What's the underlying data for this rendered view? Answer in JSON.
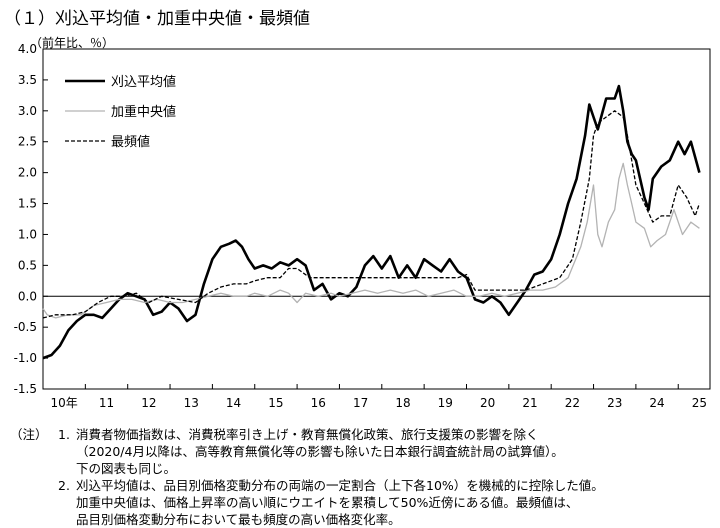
{
  "title": "（１）刈込平均値・加重中央値・最頻値",
  "unit_label": "（前年比、％）",
  "chart_data": {
    "type": "line",
    "title": "（１）刈込平均値・加重中央値・最頻値",
    "ylabel": "（前年比、％）",
    "xlabel": "",
    "ylim": [
      -1.5,
      4.0
    ],
    "yticks": [
      -1.5,
      -1.0,
      -0.5,
      0.0,
      0.5,
      1.0,
      1.5,
      2.0,
      2.5,
      3.0,
      3.5,
      4.0
    ],
    "ytick_labels": [
      "-1.5",
      "-1.0",
      "-0.5",
      "0.0",
      "0.5",
      "1.0",
      "1.5",
      "2.0",
      "2.5",
      "3.0",
      "3.5",
      "4.0"
    ],
    "xlim": [
      2010.0,
      2025.75
    ],
    "xticks": [
      2010.5,
      2011.5,
      2012.5,
      2013.5,
      2014.5,
      2015.5,
      2016.5,
      2017.5,
      2018.5,
      2019.5,
      2020.5,
      2021.5,
      2022.5,
      2023.5,
      2024.5,
      2025.5
    ],
    "xtick_labels": [
      "10年",
      "11",
      "12",
      "13",
      "14",
      "15",
      "16",
      "17",
      "18",
      "19",
      "20",
      "21",
      "22",
      "23",
      "24",
      "25"
    ],
    "grid": false,
    "zero_line": true,
    "legend": "top-left",
    "series": [
      {
        "name": "刈込平均値",
        "style": "solid",
        "color": "#000000",
        "width": 2.6,
        "points": [
          [
            2010.0,
            -1.0
          ],
          [
            2010.2,
            -0.95
          ],
          [
            2010.4,
            -0.8
          ],
          [
            2010.6,
            -0.55
          ],
          [
            2010.8,
            -0.4
          ],
          [
            2011.0,
            -0.3
          ],
          [
            2011.2,
            -0.3
          ],
          [
            2011.4,
            -0.35
          ],
          [
            2011.6,
            -0.2
          ],
          [
            2011.8,
            -0.05
          ],
          [
            2012.0,
            0.05
          ],
          [
            2012.2,
            0.0
          ],
          [
            2012.4,
            -0.05
          ],
          [
            2012.6,
            -0.3
          ],
          [
            2012.8,
            -0.25
          ],
          [
            2013.0,
            -0.1
          ],
          [
            2013.2,
            -0.2
          ],
          [
            2013.4,
            -0.4
          ],
          [
            2013.6,
            -0.3
          ],
          [
            2013.8,
            0.2
          ],
          [
            2014.0,
            0.6
          ],
          [
            2014.2,
            0.8
          ],
          [
            2014.4,
            0.85
          ],
          [
            2014.55,
            0.9
          ],
          [
            2014.7,
            0.8
          ],
          [
            2014.85,
            0.6
          ],
          [
            2015.0,
            0.45
          ],
          [
            2015.2,
            0.5
          ],
          [
            2015.4,
            0.45
          ],
          [
            2015.6,
            0.55
          ],
          [
            2015.8,
            0.5
          ],
          [
            2016.0,
            0.6
          ],
          [
            2016.2,
            0.5
          ],
          [
            2016.4,
            0.1
          ],
          [
            2016.6,
            0.2
          ],
          [
            2016.8,
            -0.05
          ],
          [
            2017.0,
            0.05
          ],
          [
            2017.2,
            0.0
          ],
          [
            2017.4,
            0.15
          ],
          [
            2017.6,
            0.5
          ],
          [
            2017.8,
            0.65
          ],
          [
            2018.0,
            0.45
          ],
          [
            2018.2,
            0.65
          ],
          [
            2018.4,
            0.3
          ],
          [
            2018.6,
            0.5
          ],
          [
            2018.8,
            0.3
          ],
          [
            2019.0,
            0.6
          ],
          [
            2019.2,
            0.5
          ],
          [
            2019.4,
            0.4
          ],
          [
            2019.6,
            0.6
          ],
          [
            2019.8,
            0.4
          ],
          [
            2020.0,
            0.3
          ],
          [
            2020.2,
            -0.05
          ],
          [
            2020.4,
            -0.1
          ],
          [
            2020.6,
            0.0
          ],
          [
            2020.8,
            -0.1
          ],
          [
            2021.0,
            -0.3
          ],
          [
            2021.2,
            -0.1
          ],
          [
            2021.4,
            0.1
          ],
          [
            2021.6,
            0.35
          ],
          [
            2021.8,
            0.4
          ],
          [
            2022.0,
            0.6
          ],
          [
            2022.2,
            1.0
          ],
          [
            2022.4,
            1.5
          ],
          [
            2022.6,
            1.9
          ],
          [
            2022.8,
            2.6
          ],
          [
            2022.9,
            3.1
          ],
          [
            2023.0,
            2.9
          ],
          [
            2023.1,
            2.7
          ],
          [
            2023.3,
            3.2
          ],
          [
            2023.5,
            3.2
          ],
          [
            2023.6,
            3.4
          ],
          [
            2023.7,
            3.0
          ],
          [
            2023.8,
            2.5
          ],
          [
            2023.9,
            2.3
          ],
          [
            2024.0,
            2.2
          ],
          [
            2024.2,
            1.6
          ],
          [
            2024.3,
            1.4
          ],
          [
            2024.4,
            1.9
          ],
          [
            2024.6,
            2.1
          ],
          [
            2024.8,
            2.2
          ],
          [
            2025.0,
            2.5
          ],
          [
            2025.15,
            2.3
          ],
          [
            2025.3,
            2.5
          ],
          [
            2025.5,
            2.0
          ]
        ]
      },
      {
        "name": "加重中央値",
        "style": "solid",
        "color": "#b3b3b3",
        "width": 1.3,
        "points": [
          [
            2010.0,
            -0.2
          ],
          [
            2010.1,
            -0.3
          ],
          [
            2010.3,
            -0.35
          ],
          [
            2010.6,
            -0.3
          ],
          [
            2010.9,
            -0.3
          ],
          [
            2011.2,
            -0.15
          ],
          [
            2011.5,
            -0.1
          ],
          [
            2011.8,
            -0.05
          ],
          [
            2012.1,
            -0.05
          ],
          [
            2012.4,
            -0.1
          ],
          [
            2012.7,
            -0.05
          ],
          [
            2013.0,
            -0.1
          ],
          [
            2013.3,
            -0.1
          ],
          [
            2013.6,
            -0.05
          ],
          [
            2013.9,
            0.0
          ],
          [
            2014.2,
            0.05
          ],
          [
            2014.5,
            0.0
          ],
          [
            2014.8,
            0.0
          ],
          [
            2015.0,
            0.05
          ],
          [
            2015.3,
            0.0
          ],
          [
            2015.6,
            0.1
          ],
          [
            2015.8,
            0.05
          ],
          [
            2016.0,
            -0.1
          ],
          [
            2016.2,
            0.05
          ],
          [
            2016.5,
            0.0
          ],
          [
            2016.8,
            0.05
          ],
          [
            2017.0,
            0.0
          ],
          [
            2017.3,
            0.05
          ],
          [
            2017.6,
            0.1
          ],
          [
            2017.9,
            0.05
          ],
          [
            2018.2,
            0.1
          ],
          [
            2018.5,
            0.05
          ],
          [
            2018.8,
            0.1
          ],
          [
            2019.1,
            0.0
          ],
          [
            2019.4,
            0.05
          ],
          [
            2019.7,
            0.1
          ],
          [
            2020.0,
            0.0
          ],
          [
            2020.3,
            0.0
          ],
          [
            2020.6,
            0.05
          ],
          [
            2020.9,
            0.0
          ],
          [
            2021.2,
            0.05
          ],
          [
            2021.5,
            0.1
          ],
          [
            2021.8,
            0.1
          ],
          [
            2022.1,
            0.15
          ],
          [
            2022.4,
            0.3
          ],
          [
            2022.7,
            0.8
          ],
          [
            2022.85,
            1.2
          ],
          [
            2023.0,
            1.8
          ],
          [
            2023.1,
            1.0
          ],
          [
            2023.2,
            0.8
          ],
          [
            2023.35,
            1.2
          ],
          [
            2023.5,
            1.4
          ],
          [
            2023.6,
            1.9
          ],
          [
            2023.7,
            2.15
          ],
          [
            2023.8,
            1.8
          ],
          [
            2023.9,
            1.5
          ],
          [
            2024.0,
            1.2
          ],
          [
            2024.2,
            1.1
          ],
          [
            2024.35,
            0.8
          ],
          [
            2024.5,
            0.9
          ],
          [
            2024.7,
            1.0
          ],
          [
            2024.9,
            1.4
          ],
          [
            2025.1,
            1.0
          ],
          [
            2025.3,
            1.2
          ],
          [
            2025.5,
            1.1
          ]
        ]
      },
      {
        "name": "最頻値",
        "style": "dashed",
        "color": "#000000",
        "width": 1.3,
        "points": [
          [
            2010.0,
            -0.35
          ],
          [
            2010.3,
            -0.3
          ],
          [
            2010.7,
            -0.3
          ],
          [
            2011.0,
            -0.25
          ],
          [
            2011.3,
            -0.1
          ],
          [
            2011.6,
            0.0
          ],
          [
            2011.9,
            0.0
          ],
          [
            2012.2,
            0.05
          ],
          [
            2012.5,
            -0.1
          ],
          [
            2012.8,
            0.0
          ],
          [
            2013.2,
            -0.05
          ],
          [
            2013.6,
            -0.1
          ],
          [
            2013.9,
            0.05
          ],
          [
            2014.2,
            0.15
          ],
          [
            2014.5,
            0.2
          ],
          [
            2014.8,
            0.2
          ],
          [
            2015.0,
            0.25
          ],
          [
            2015.3,
            0.3
          ],
          [
            2015.6,
            0.3
          ],
          [
            2015.8,
            0.45
          ],
          [
            2016.0,
            0.45
          ],
          [
            2016.3,
            0.3
          ],
          [
            2016.6,
            0.3
          ],
          [
            2017.0,
            0.3
          ],
          [
            2017.4,
            0.3
          ],
          [
            2017.8,
            0.3
          ],
          [
            2018.2,
            0.3
          ],
          [
            2018.6,
            0.3
          ],
          [
            2019.0,
            0.3
          ],
          [
            2019.4,
            0.3
          ],
          [
            2019.8,
            0.3
          ],
          [
            2020.0,
            0.35
          ],
          [
            2020.2,
            0.1
          ],
          [
            2020.6,
            0.1
          ],
          [
            2021.0,
            0.1
          ],
          [
            2021.4,
            0.1
          ],
          [
            2021.8,
            0.2
          ],
          [
            2022.2,
            0.3
          ],
          [
            2022.5,
            0.6
          ],
          [
            2022.7,
            1.2
          ],
          [
            2022.9,
            1.9
          ],
          [
            2023.0,
            2.6
          ],
          [
            2023.1,
            2.8
          ],
          [
            2023.3,
            2.9
          ],
          [
            2023.5,
            3.0
          ],
          [
            2023.7,
            2.9
          ],
          [
            2023.8,
            2.6
          ],
          [
            2023.9,
            2.2
          ],
          [
            2024.0,
            1.8
          ],
          [
            2024.2,
            1.5
          ],
          [
            2024.4,
            1.2
          ],
          [
            2024.6,
            1.3
          ],
          [
            2024.8,
            1.3
          ],
          [
            2025.0,
            1.8
          ],
          [
            2025.2,
            1.6
          ],
          [
            2025.4,
            1.3
          ],
          [
            2025.5,
            1.5
          ]
        ]
      }
    ]
  },
  "notes": {
    "marker": "（注）",
    "items": [
      {
        "num": "1.",
        "lines": [
          "消費者物価指数は、消費税率引き上げ・教育無償化政策、旅行支援策の影響を除く",
          "（2020/4月以降は、高等教育無償化等の影響も除いた日本銀行調査統計局の試算値）。",
          "下の図表も同じ。"
        ]
      },
      {
        "num": "2.",
        "lines": [
          "刈込平均値は、品目別価格変動分布の両端の一定割合（上下各10%）を機械的に控除した値。",
          "加重中央値は、価格上昇率の高い順にウエイトを累積して50%近傍にある値。最頻値は、",
          "品目別価格変動分布において最も頻度の高い価格変化率。"
        ]
      }
    ]
  }
}
